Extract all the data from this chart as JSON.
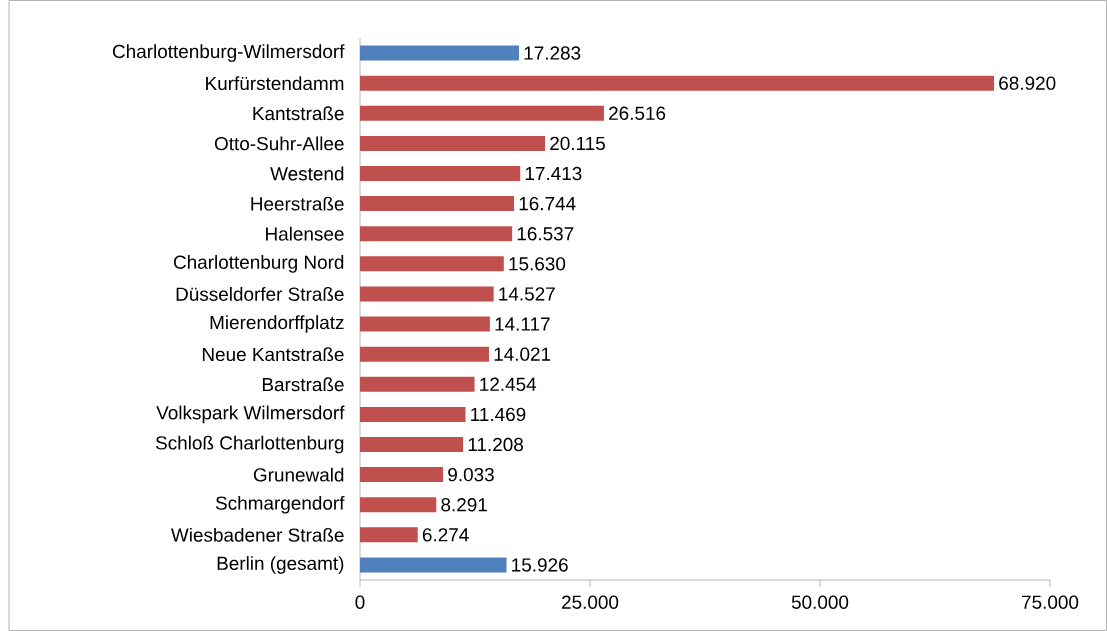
{
  "chart_data": {
    "type": "bar",
    "orientation": "horizontal",
    "categories": [
      "Charlottenburg-Wilmersdorf",
      "Kurfürstendamm",
      "Kantstraße",
      "Otto-Suhr-Allee",
      "Westend",
      "Heerstraße",
      "Halensee",
      "Charlottenburg Nord",
      "Düsseldorfer Straße",
      "Mierendorffplatz",
      "Neue Kantstraße",
      "Barstraße",
      "Volkspark Wilmersdorf",
      "Schloß Charlottenburg",
      "Grunewald",
      "Schmargendorf",
      "Wiesbadener Straße",
      "Berlin (gesamt)"
    ],
    "values": [
      17283,
      68920,
      26516,
      20115,
      17413,
      16744,
      16537,
      15630,
      14527,
      14117,
      14021,
      12454,
      11469,
      11208,
      9033,
      8291,
      6274,
      15926
    ],
    "value_labels": [
      "17.283",
      "68.920",
      "26.516",
      "20.115",
      "17.413",
      "16.744",
      "16.537",
      "15.630",
      "14.527",
      "14.117",
      "14.021",
      "12.454",
      "11.469",
      "11.208",
      "9.033",
      "8.291",
      "6.274",
      "15.926"
    ],
    "colors": [
      "#4f81bd",
      "#c0504d",
      "#c0504d",
      "#c0504d",
      "#c0504d",
      "#c0504d",
      "#c0504d",
      "#c0504d",
      "#c0504d",
      "#c0504d",
      "#c0504d",
      "#c0504d",
      "#c0504d",
      "#c0504d",
      "#c0504d",
      "#c0504d",
      "#c0504d",
      "#4f81bd"
    ],
    "xlim": [
      0,
      75000
    ],
    "xticks": [
      0,
      {
        "value": 25000,
        "label": "25.000"
      },
      {
        "value": 50000,
        "label": "50.000"
      },
      {
        "value": 75000,
        "label": "75.000"
      }
    ],
    "grid": false
  }
}
